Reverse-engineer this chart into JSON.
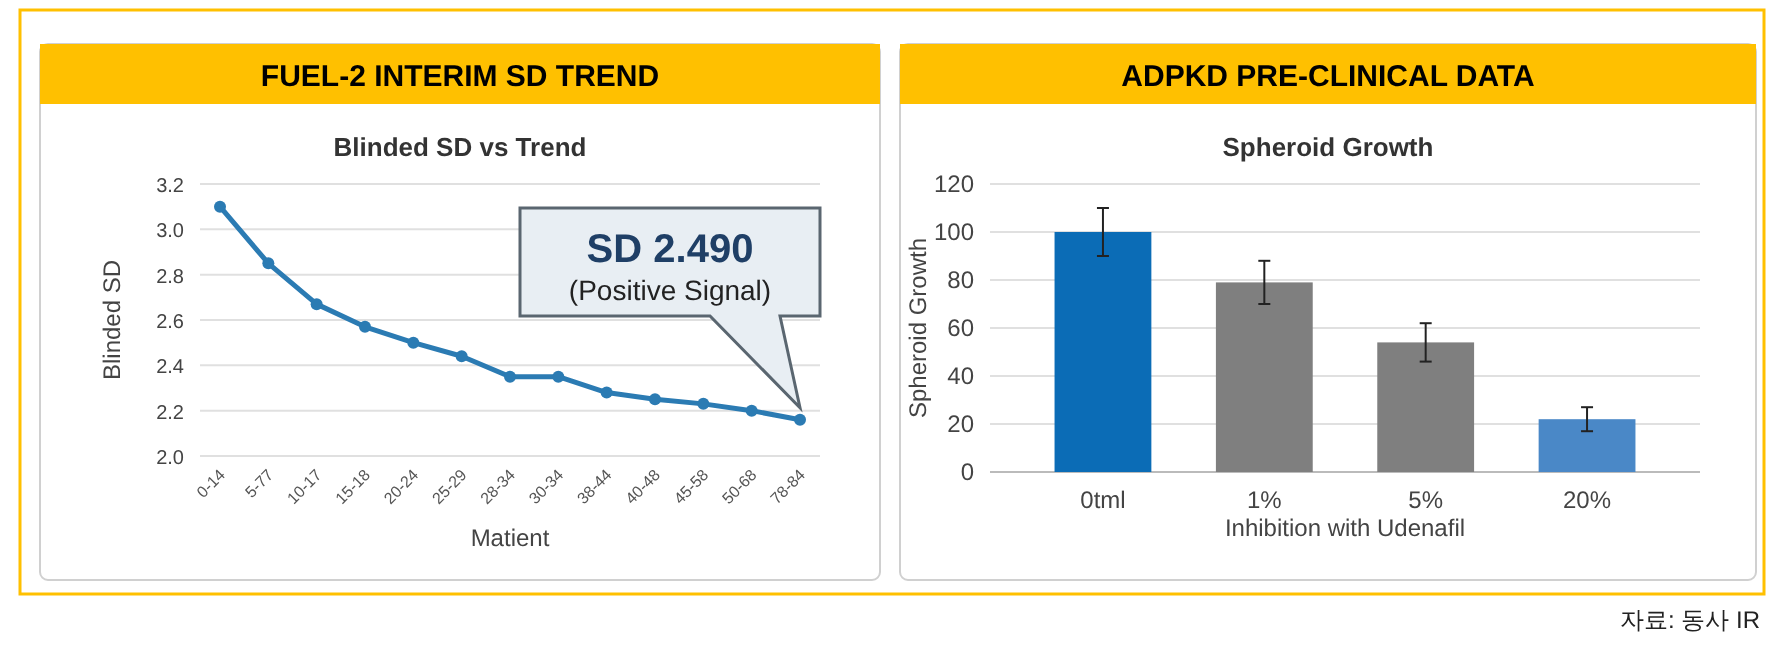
{
  "chart_data": [
    {
      "type": "line",
      "title": "FUEL-2 INTERIM SD TREND",
      "subtitle": "Blinded SD vs Trend",
      "xlabel": "Matient",
      "ylabel": "Blinded SD",
      "categories": [
        "0-14",
        "5-77",
        "10-17",
        "15-18",
        "20-24",
        "25-29",
        "28-34",
        "30-34",
        "38-44",
        "40-48",
        "45-58",
        "50-68",
        "78-84"
      ],
      "series": [
        {
          "color": "#2b7bb3",
          "values": [
            3.1,
            2.85,
            2.67,
            2.57,
            2.5,
            2.44,
            2.35,
            2.35,
            2.28,
            2.25,
            2.23,
            2.2,
            2.16
          ]
        }
      ],
      "ylim": [
        2.0,
        3.2
      ],
      "yticks": [
        {
          "value": 2.0,
          "label": "2.0"
        },
        {
          "value": 2.2,
          "label": "2.2"
        },
        {
          "value": 2.4,
          "label": "2.4"
        },
        {
          "value": 2.6,
          "label": "2.6"
        },
        {
          "value": 2.8,
          "label": "2.8"
        },
        {
          "value": 3.0,
          "label": "3.0"
        },
        {
          "value": 3.2,
          "label": "3.2"
        }
      ],
      "grid": "y",
      "marker": "circle",
      "line_style": "solid",
      "annotations": [
        "SD 2.490",
        "(Positive Signal)"
      ]
    },
    {
      "type": "bar",
      "title": "ADPKD PRE-CLINICAL DATA",
      "subtitle": "Spheroid Growth",
      "xlabel": "Inhibition with Udenafil",
      "ylabel": "Spheroid Growth",
      "categories": [
        "0tml",
        "1%",
        "5%",
        "20%"
      ],
      "values": [
        100,
        79,
        54,
        22
      ],
      "colors": [
        "#0b6cb6",
        "#7f7f7f",
        "#7f7f7f",
        "#4a88c7"
      ],
      "errors": [
        10,
        9,
        8,
        5
      ],
      "ylim": [
        0,
        120
      ],
      "yticks": [
        0,
        20,
        40,
        60,
        80,
        100,
        120
      ],
      "grid": "y",
      "annotations": [
        "자료: 동사 IR"
      ]
    }
  ]
}
